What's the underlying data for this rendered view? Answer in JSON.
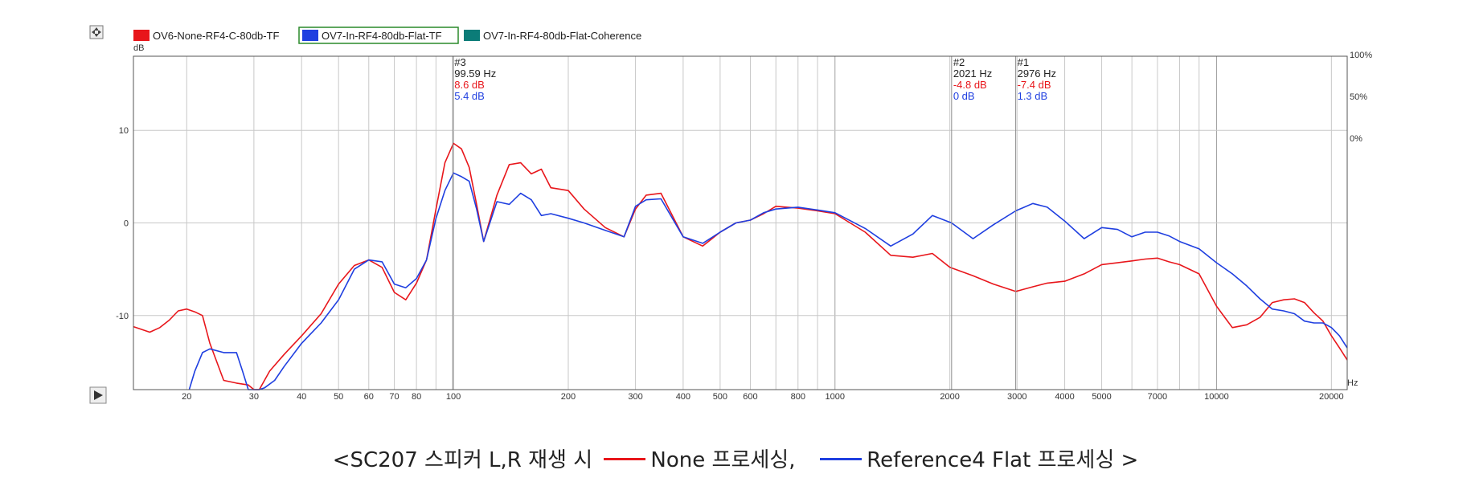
{
  "colors": {
    "none": "#e8161b",
    "reference": "#1f3fe0",
    "coherence": "#0b7c78",
    "grid": "#c8c8c8",
    "legend_box": "#2a8a2a"
  },
  "icons": [
    "move-icon",
    "play-icon"
  ],
  "caption": {
    "prefix": "<SC207 스피커 L,R 재생 시",
    "none_label": "None 프로세싱,",
    "reference_label": "Reference4 Flat 프로세싱 >"
  },
  "chart_data": {
    "type": "line",
    "x_scale": "log",
    "xlim": [
      14.5,
      22000
    ],
    "ylim": [
      -18,
      18
    ],
    "ylabel": "dB",
    "xlabel": "Hz",
    "x_ticks": [
      20,
      30,
      40,
      50,
      60,
      70,
      80,
      100,
      200,
      300,
      400,
      500,
      600,
      800,
      1000,
      2000,
      3000,
      4000,
      5000,
      7000,
      10000,
      20000
    ],
    "y_ticks": [
      10,
      0,
      -10
    ],
    "right_axis_labels": [
      "100%",
      "50%",
      "0%"
    ],
    "grid": true,
    "legend_position": "top-left",
    "legend": [
      "OV6-None-RF4-C-80db-TF",
      "OV7-In-RF4-80db-Flat-TF",
      "OV7-In-RF4-80db-Flat-Coherence"
    ],
    "markers": [
      {
        "label": "#3",
        "freq_label": "99.59 Hz",
        "x": 99.59,
        "v1": "8.6 dB",
        "v2": "5.4 dB"
      },
      {
        "label": "#2",
        "freq_label": "2021 Hz",
        "x": 2021,
        "v1": "-4.8 dB",
        "v2": "0 dB"
      },
      {
        "label": "#1",
        "freq_label": "2976 Hz",
        "x": 2976,
        "v1": "-7.4 dB",
        "v2": "1.3 dB"
      }
    ],
    "series": [
      {
        "name": "OV6-None-RF4-C-80db-TF",
        "x": [
          14.5,
          16,
          17,
          18,
          19,
          20,
          21,
          22,
          23,
          25,
          27,
          29,
          30,
          31,
          33,
          36,
          40,
          45,
          50,
          55,
          60,
          65,
          70,
          75,
          80,
          85,
          90,
          95,
          100,
          105,
          110,
          115,
          120,
          130,
          140,
          150,
          160,
          170,
          180,
          200,
          220,
          250,
          280,
          300,
          320,
          350,
          400,
          450,
          500,
          550,
          600,
          650,
          700,
          800,
          900,
          1000,
          1200,
          1400,
          1600,
          1800,
          2000,
          2300,
          2600,
          2976,
          3300,
          3600,
          4000,
          4500,
          5000,
          5500,
          6000,
          6500,
          7000,
          7500,
          8000,
          9000,
          10000,
          11000,
          12000,
          13000,
          14000,
          15000,
          16000,
          17000,
          18000,
          19000,
          20000,
          21000,
          22000
        ],
        "y": [
          -11.2,
          -11.8,
          -11.3,
          -10.5,
          -9.5,
          -9.3,
          -9.6,
          -10.0,
          -13.0,
          -17.0,
          -17.3,
          -17.5,
          -18.0,
          -18.0,
          -16.0,
          -14.2,
          -12.2,
          -9.8,
          -6.6,
          -4.6,
          -4.0,
          -4.8,
          -7.5,
          -8.3,
          -6.5,
          -4.0,
          1.5,
          6.5,
          8.6,
          8.0,
          6.0,
          2.0,
          -2.0,
          3.0,
          6.3,
          6.5,
          5.3,
          5.8,
          3.8,
          3.5,
          1.5,
          -0.5,
          -1.5,
          1.5,
          3.0,
          3.2,
          -1.5,
          -2.5,
          -1.0,
          0.0,
          0.3,
          1.0,
          1.8,
          1.6,
          1.3,
          1.0,
          -1.0,
          -3.5,
          -3.7,
          -3.3,
          -4.8,
          -5.7,
          -6.6,
          -7.4,
          -6.9,
          -6.5,
          -6.3,
          -5.5,
          -4.5,
          -4.3,
          -4.1,
          -3.9,
          -3.8,
          -4.2,
          -4.5,
          -5.5,
          -9.0,
          -11.3,
          -11.0,
          -10.2,
          -8.6,
          -8.3,
          -8.2,
          -8.6,
          -9.7,
          -10.6,
          -12.2,
          -13.5,
          -14.8
        ]
      },
      {
        "name": "OV7-In-RF4-80db-Flat-TF",
        "x": [
          20.3,
          21,
          22,
          23,
          25,
          27,
          28,
          29,
          30,
          31,
          32,
          34,
          36,
          40,
          45,
          50,
          55,
          60,
          65,
          70,
          75,
          80,
          85,
          90,
          95,
          100,
          105,
          110,
          115,
          120,
          130,
          140,
          150,
          160,
          170,
          180,
          200,
          220,
          250,
          280,
          300,
          320,
          350,
          400,
          450,
          500,
          550,
          600,
          650,
          700,
          800,
          900,
          1000,
          1200,
          1400,
          1600,
          1800,
          2021,
          2300,
          2600,
          2976,
          3300,
          3600,
          4000,
          4500,
          5000,
          5500,
          6000,
          6500,
          7000,
          7500,
          8000,
          9000,
          10000,
          11000,
          12000,
          13000,
          14000,
          15000,
          16000,
          17000,
          18000,
          19000,
          20000,
          21000,
          22000
        ],
        "y": [
          -18.0,
          -16.0,
          -14.0,
          -13.6,
          -14.0,
          -14.0,
          -16.0,
          -18.0,
          -18.0,
          -18.0,
          -17.8,
          -17.0,
          -15.5,
          -13.0,
          -10.8,
          -8.3,
          -5.0,
          -4.0,
          -4.2,
          -6.6,
          -7.0,
          -6.0,
          -4.0,
          0.5,
          3.5,
          5.4,
          5.0,
          4.5,
          1.5,
          -2.0,
          2.3,
          2.0,
          3.2,
          2.5,
          0.8,
          1.0,
          0.5,
          0.0,
          -0.8,
          -1.5,
          1.8,
          2.5,
          2.6,
          -1.5,
          -2.2,
          -1.0,
          0.0,
          0.3,
          1.1,
          1.5,
          1.7,
          1.4,
          1.1,
          -0.6,
          -2.5,
          -1.2,
          0.8,
          0.0,
          -1.7,
          -0.2,
          1.3,
          2.1,
          1.7,
          0.2,
          -1.7,
          -0.5,
          -0.7,
          -1.5,
          -1.0,
          -1.0,
          -1.4,
          -2.0,
          -2.8,
          -4.3,
          -5.5,
          -6.8,
          -8.2,
          -9.3,
          -9.5,
          -9.8,
          -10.6,
          -10.8,
          -10.8,
          -11.3,
          -12.2,
          -13.5
        ]
      }
    ]
  }
}
